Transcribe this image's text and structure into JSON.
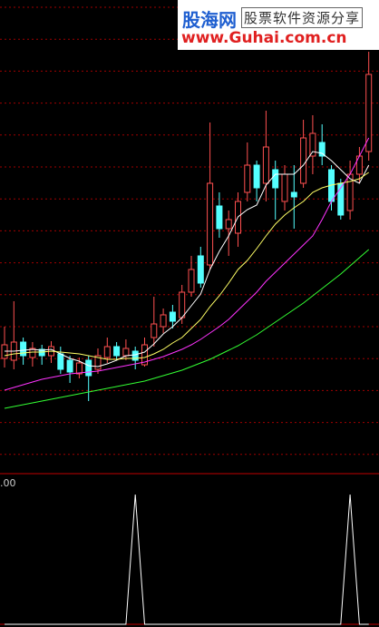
{
  "chart_data": {
    "type": "candlestick",
    "ylim": [
      0,
      522
    ],
    "open": [
      127,
      125,
      145,
      128,
      137,
      130,
      132,
      125,
      110,
      125,
      115,
      128,
      140,
      130,
      135,
      120,
      150,
      162,
      178,
      172,
      200,
      240,
      230,
      295,
      270,
      265,
      310,
      340,
      320,
      335,
      300,
      310,
      320,
      350,
      365,
      335,
      320,
      290,
      330,
      355
    ],
    "high": [
      162,
      190,
      150,
      145,
      142,
      146,
      140,
      130,
      128,
      130,
      138,
      150,
      145,
      148,
      140,
      150,
      195,
      182,
      186,
      208,
      240,
      250,
      387,
      310,
      290,
      310,
      365,
      345,
      400,
      345,
      340,
      340,
      390,
      395,
      385,
      340,
      325,
      345,
      360,
      465
    ],
    "low": [
      117,
      115,
      120,
      118,
      120,
      122,
      110,
      100,
      105,
      80,
      110,
      122,
      125,
      125,
      115,
      118,
      140,
      155,
      160,
      165,
      195,
      205,
      225,
      260,
      240,
      250,
      300,
      300,
      300,
      280,
      290,
      270,
      315,
      330,
      340,
      290,
      280,
      280,
      320,
      345
    ],
    "close": [
      142,
      145,
      130,
      138,
      130,
      140,
      115,
      112,
      122,
      108,
      130,
      140,
      130,
      138,
      125,
      142,
      165,
      175,
      168,
      200,
      225,
      210,
      320,
      270,
      280,
      300,
      340,
      315,
      360,
      315,
      330,
      305,
      370,
      375,
      350,
      300,
      285,
      330,
      350,
      440
    ],
    "up_color": "#ff5050",
    "down_color": "#54ffff",
    "series": [
      {
        "color": "#ffffff",
        "values": [
          135,
          135,
          136,
          137,
          136,
          137,
          132,
          127,
          124,
          119,
          118,
          121,
          125,
          130,
          131,
          134,
          143,
          154,
          162,
          172,
          185,
          198,
          225,
          245,
          262,
          283,
          291,
          296,
          318,
          330,
          330,
          330,
          340,
          355,
          353,
          345,
          335,
          325,
          320,
          340
        ]
      },
      {
        "color": "#ffff66",
        "values": [
          130,
          132,
          133,
          134,
          134,
          135,
          134,
          133,
          132,
          130,
          128,
          126,
          126,
          127,
          127,
          128,
          132,
          137,
          144,
          150,
          160,
          170,
          184,
          196,
          210,
          225,
          235,
          248,
          262,
          275,
          285,
          293,
          300,
          310,
          315,
          318,
          320,
          322,
          325,
          332
        ]
      },
      {
        "color": "#ff33ff",
        "values": [
          92,
          95,
          98,
          101,
          104,
          106,
          108,
          110,
          111,
          112,
          113,
          115,
          117,
          119,
          121,
          123,
          126,
          129,
          133,
          137,
          142,
          148,
          155,
          162,
          170,
          180,
          190,
          200,
          212,
          222,
          232,
          242,
          252,
          262,
          280,
          300,
          315,
          330,
          350,
          370
        ]
      },
      {
        "color": "#33ff33",
        "values": [
          72,
          74,
          76,
          78,
          80,
          82,
          84,
          86,
          88,
          90,
          92,
          94,
          96,
          98,
          100,
          102,
          105,
          108,
          111,
          114,
          118,
          122,
          126,
          131,
          136,
          141,
          147,
          153,
          160,
          167,
          174,
          181,
          188,
          196,
          204,
          212,
          220,
          229,
          238,
          247
        ]
      }
    ],
    "indicator": {
      "label": ".00",
      "color": "#ffffff",
      "ylim": [
        0,
        1
      ],
      "values": [
        0,
        0,
        0,
        0,
        0,
        0,
        0,
        0,
        0,
        0,
        0,
        0,
        0,
        0,
        1,
        0,
        0,
        0,
        0,
        0,
        0,
        0,
        0,
        0,
        0,
        0,
        0,
        0,
        0,
        0,
        0,
        0,
        0,
        0,
        0,
        0,
        0,
        1,
        0,
        0
      ]
    }
  },
  "watermark": {
    "brand": "股海网",
    "tagline": "股票软件资源分享",
    "url": "www.Guhai.com.cn"
  }
}
